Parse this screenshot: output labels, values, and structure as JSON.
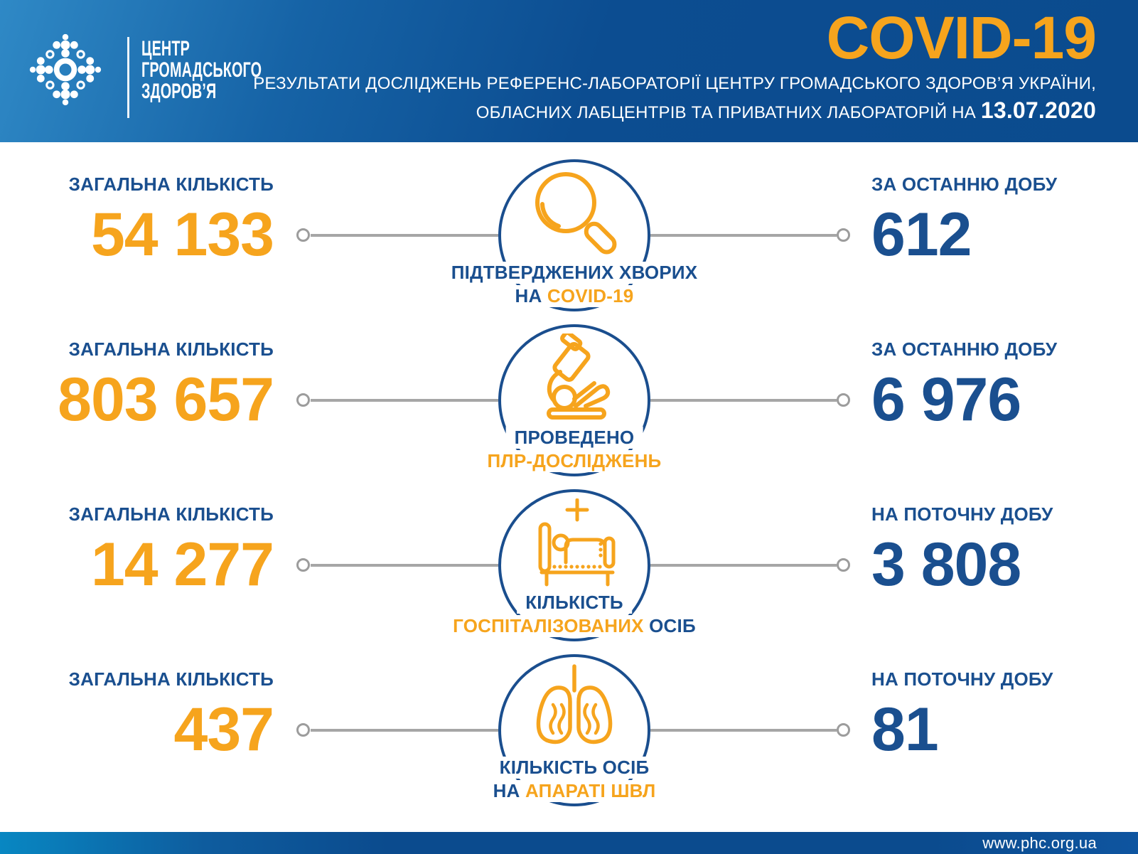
{
  "header": {
    "logo_icon": "phc-dots-logo",
    "logo_text": {
      "line1": "ЦЕНТР",
      "line2": "ГРОМАДСЬКОГО",
      "line3": "ЗДОРОВ’Я"
    },
    "title": "COVID-19",
    "subtitle_line1": "РЕЗУЛЬТАТИ ДОСЛІДЖЕНЬ РЕФЕРЕНС-ЛАБОРАТОРІЇ ЦЕНТРУ ГРОМАДСЬКОГО ЗДОРОВ’Я УКРАЇНИ,",
    "subtitle_line2_prefix": "ОБЛАСНИХ ЛАБЦЕНТРІВ ТА ПРИВАТНИХ ЛАБОРАТОРІЙ НА ",
    "date": "13.07.2020"
  },
  "rows": [
    {
      "icon": "magnifier-icon",
      "left": {
        "label": "ЗАГАЛЬНА КІЛЬКІСТЬ",
        "value": "54 133"
      },
      "right": {
        "label": "ЗА ОСТАННЮ ДОБУ",
        "value": "612"
      },
      "caption": {
        "line1": [
          {
            "text": "ПІДТВЕРДЖЕНИХ ХВОРИХ",
            "color": "blue"
          }
        ],
        "line2": [
          {
            "text": "НА ",
            "color": "blue"
          },
          {
            "text": "COVID-19",
            "color": "orange"
          }
        ]
      }
    },
    {
      "icon": "microscope-icon",
      "left": {
        "label": "ЗАГАЛЬНА КІЛЬКІСТЬ",
        "value": "803 657"
      },
      "right": {
        "label": "ЗА ОСТАННЮ ДОБУ",
        "value": "6 976"
      },
      "caption": {
        "line1": [
          {
            "text": "ПРОВЕДЕНО",
            "color": "blue"
          }
        ],
        "line2": [
          {
            "text": "ПЛР-ДОСЛІДЖЕНЬ",
            "color": "orange"
          }
        ]
      }
    },
    {
      "icon": "hospital-bed-icon",
      "left": {
        "label": "ЗАГАЛЬНА КІЛЬКІСТЬ",
        "value": "14 277"
      },
      "right": {
        "label": "НА ПОТОЧНУ ДОБУ",
        "value": "3 808"
      },
      "caption": {
        "line1": [
          {
            "text": "КІЛЬКІСТЬ",
            "color": "blue"
          }
        ],
        "line2": [
          {
            "text": "ГОСПІТАЛІЗОВАНИХ ",
            "color": "orange"
          },
          {
            "text": "ОСІБ",
            "color": "blue"
          }
        ]
      }
    },
    {
      "icon": "lungs-icon",
      "left": {
        "label": "ЗАГАЛЬНА КІЛЬКІСТЬ",
        "value": "437"
      },
      "right": {
        "label": "НА ПОТОЧНУ ДОБУ",
        "value": "81"
      },
      "caption": {
        "line1": [
          {
            "text": "КІЛЬКІСТЬ ОСІБ",
            "color": "blue"
          }
        ],
        "line2": [
          {
            "text": "НА ",
            "color": "blue"
          },
          {
            "text": "АПАРАТІ ШВЛ",
            "color": "orange"
          }
        ]
      }
    }
  ],
  "footer": {
    "url": "www.phc.org.ua"
  },
  "colors": {
    "orange": "#F6A41D",
    "dark_blue_text": "#1A4F8F",
    "circle_blue": "#1A4E8E",
    "connector_gray": "#A6A6A6",
    "header_light_blue": "#2F89C6",
    "header_dark_blue": "#0B4B8E",
    "footer_left_blue": "#0887C2"
  },
  "chart_data": {
    "type": "table",
    "title": "COVID-19 — результати досліджень референс-лабораторії ЦГЗ України, обласних лабцентрів та приватних лабораторій на 13.07.2020",
    "categories": [
      "Підтверджених хворих на COVID-19",
      "Проведено ПЛР-досліджень",
      "Кількість госпіталізованих осіб",
      "Кількість осіб на апараті ШВЛ"
    ],
    "series": [
      {
        "name": "Загальна кількість",
        "values": [
          54133,
          803657,
          14277,
          437
        ]
      },
      {
        "name": "За останню добу",
        "values": [
          612,
          6976,
          null,
          null
        ]
      },
      {
        "name": "На поточну добу",
        "values": [
          null,
          null,
          3808,
          81
        ]
      }
    ]
  }
}
